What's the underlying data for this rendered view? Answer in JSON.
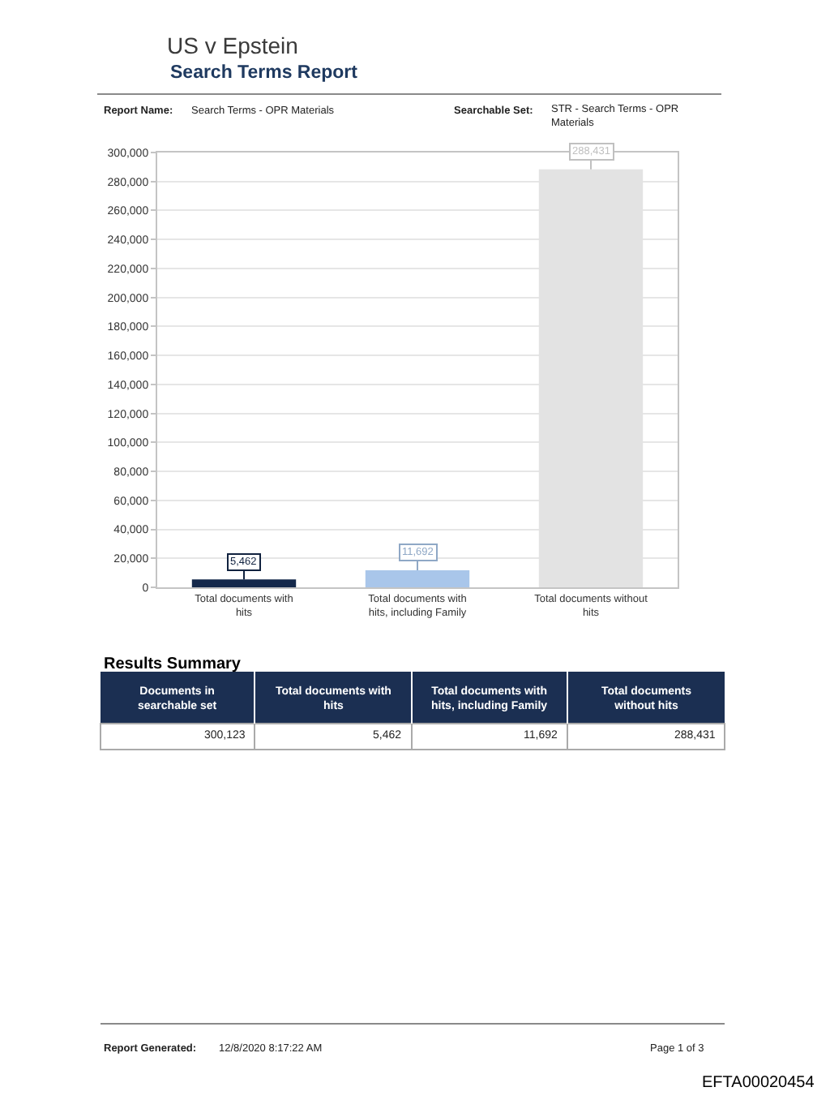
{
  "chart_data": {
    "type": "bar",
    "title": "US v Epstein",
    "subtitle": "Search Terms Report",
    "categories": [
      "Total documents with hits",
      "Total documents with hits, including Family",
      "Total documents without hits"
    ],
    "values": [
      5462,
      11692,
      288431
    ],
    "colors": [
      "#14284b",
      "#a9c6ea",
      "#e3e3e3"
    ],
    "value_labels": [
      "5,462",
      "11,692",
      "288,431"
    ],
    "ylim": [
      0,
      300000
    ],
    "yticks": [
      0,
      {
        "value": 20000,
        "label": "20,000"
      },
      {
        "value": 40000,
        "label": "40,000"
      },
      {
        "value": 60000,
        "label": "60,000"
      },
      {
        "value": 80000,
        "label": "80,000"
      },
      {
        "value": 100000,
        "label": "100,000"
      },
      {
        "value": 120000,
        "label": "120,000"
      },
      {
        "value": 140000,
        "label": "140,000"
      },
      {
        "value": 160000,
        "label": "160,000"
      },
      {
        "value": 180000,
        "label": "180,000"
      },
      {
        "value": 200000,
        "label": "200,000"
      },
      {
        "value": 220000,
        "label": "220,000"
      },
      {
        "value": 240000,
        "label": "240,000"
      },
      {
        "value": 260000,
        "label": "260,000"
      },
      {
        "value": 280000,
        "label": "280,000"
      },
      {
        "value": 300000,
        "label": "300,000"
      }
    ],
    "grid": "y",
    "annotations": [
      "Report Name:",
      "Search Terms - OPR Materials",
      "Searchable Set:",
      "STR - Search Terms - OPR Materials",
      "Results Summary",
      "Documents in searchable set",
      "Total documents with hits",
      "Total documents with hits, including Family",
      "Total documents without hits",
      "300,123",
      "5,462",
      "11,692",
      "288,431",
      "Report Generated:",
      "12/8/2020 8:17:22 AM",
      "Page 1 of 3",
      "EFTA00020454"
    ]
  }
}
